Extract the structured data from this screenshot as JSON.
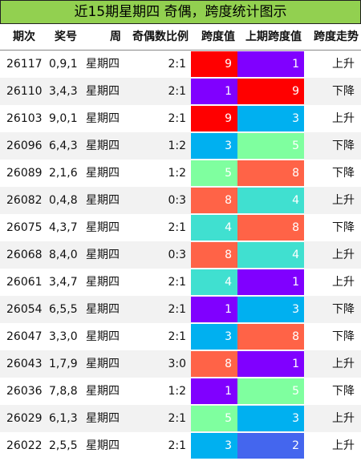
{
  "title": "近15期星期四 奇偶，跨度统计图示",
  "header": [
    "期次",
    "奖号",
    "周",
    "奇偶数比例",
    "跨度值",
    "上期跨度值",
    "跨度走势"
  ],
  "rows": [
    [
      "26117",
      "0,9,1",
      "星期四",
      "2:1",
      "9",
      "1",
      "上升"
    ],
    [
      "26110",
      "3,4,3",
      "星期四",
      "2:1",
      "1",
      "9",
      "下降"
    ],
    [
      "26103",
      "9,0,1",
      "星期四",
      "2:1",
      "9",
      "3",
      "上升"
    ],
    [
      "26096",
      "6,4,3",
      "星期四",
      "1:2",
      "3",
      "5",
      "下降"
    ],
    [
      "26089",
      "2,1,6",
      "星期四",
      "1:2",
      "5",
      "8",
      "下降"
    ],
    [
      "26082",
      "0,4,8",
      "星期四",
      "0:3",
      "8",
      "4",
      "上升"
    ],
    [
      "26075",
      "4,3,7",
      "星期四",
      "2:1",
      "4",
      "8",
      "下降"
    ],
    [
      "26068",
      "8,4,0",
      "星期四",
      "0:3",
      "8",
      "4",
      "上升"
    ],
    [
      "26061",
      "3,4,7",
      "星期四",
      "2:1",
      "4",
      "1",
      "上升"
    ],
    [
      "26054",
      "6,5,5",
      "星期四",
      "2:1",
      "1",
      "3",
      "下降"
    ],
    [
      "26047",
      "3,3,0",
      "星期四",
      "2:1",
      "3",
      "8",
      "下降"
    ],
    [
      "26043",
      "1,7,9",
      "星期四",
      "3:0",
      "8",
      "1",
      "上升"
    ],
    [
      "26036",
      "7,8,8",
      "星期四",
      "1:2",
      "1",
      "5",
      "下降"
    ],
    [
      "26029",
      "6,1,3",
      "星期四",
      "2:1",
      "5",
      "3",
      "上升"
    ],
    [
      "26022",
      "2,5,5",
      "星期四",
      "2:1",
      "3",
      "2",
      "上升"
    ]
  ],
  "span_colors": {
    "1": "#8000ff",
    "2": "#4466ee",
    "3": "#00b0f0",
    "4": "#40e0d0",
    "5": "#7fff9f",
    "8": "#ff6347",
    "9": "#ff0000"
  }
}
